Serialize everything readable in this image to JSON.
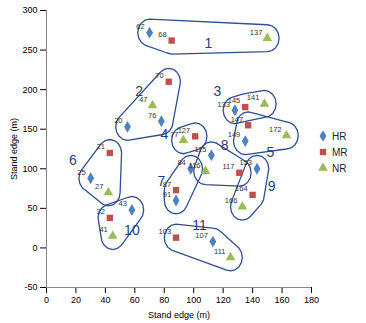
{
  "chart_data": {
    "type": "scatter",
    "xlabel": "Stand edge (m)",
    "ylabel": "Stand edge (m)",
    "xlim": [
      0,
      180
    ],
    "xticks": [
      0,
      20,
      40,
      60,
      80,
      100,
      120,
      140,
      160,
      180
    ],
    "ylim": [
      -50,
      300
    ],
    "yticks": [
      -50,
      0,
      50,
      100,
      150,
      200,
      250,
      300
    ],
    "legend": "right",
    "series": [
      {
        "name": "HR",
        "color": "#4f81bd",
        "marker": "diamond",
        "points": [
          {
            "x": 70,
            "y": 272,
            "label": "62",
            "group": "1"
          },
          {
            "x": 55,
            "y": 153,
            "label": "20",
            "group": "2"
          },
          {
            "x": 78,
            "y": 160,
            "label": "76",
            "group": "2"
          },
          {
            "x": 128,
            "y": 174,
            "label": "133",
            "group": "3"
          },
          {
            "x": 135,
            "y": 135,
            "label": "149",
            "group": "5"
          },
          {
            "x": 30,
            "y": 88,
            "label": "25",
            "group": "6"
          },
          {
            "x": 98,
            "y": 100,
            "label": "84",
            "group": "7"
          },
          {
            "x": 88,
            "y": 60,
            "label": "91",
            "group": "7"
          },
          {
            "x": 112,
            "y": 117,
            "label": "115",
            "group": "8"
          },
          {
            "x": 143,
            "y": 100,
            "label": "153",
            "group": "9"
          },
          {
            "x": 58,
            "y": 48,
            "label": "43",
            "group": "10"
          },
          {
            "x": 113,
            "y": 8,
            "label": "107",
            "group": "11"
          }
        ]
      },
      {
        "name": "MR",
        "color": "#c0504d",
        "marker": "square",
        "points": [
          {
            "x": 85,
            "y": 262,
            "label": "68",
            "group": "1"
          },
          {
            "x": 83,
            "y": 210,
            "label": "70",
            "group": "2"
          },
          {
            "x": 135,
            "y": 178,
            "label": "145",
            "group": "3"
          },
          {
            "x": 101,
            "y": 141,
            "label": "127",
            "group": "4"
          },
          {
            "x": 137,
            "y": 155,
            "label": "147",
            "group": "5"
          },
          {
            "x": 43,
            "y": 120,
            "label": "21",
            "group": "6"
          },
          {
            "x": 88,
            "y": 73,
            "label": "87",
            "group": "7"
          },
          {
            "x": 131,
            "y": 95,
            "label": "117",
            "group": "8"
          },
          {
            "x": 140,
            "y": 67,
            "label": "164",
            "group": "9"
          },
          {
            "x": 43,
            "y": 38,
            "label": "32",
            "group": "10"
          },
          {
            "x": 88,
            "y": 13,
            "label": "103",
            "group": "11"
          }
        ]
      },
      {
        "name": "NR",
        "color": "#9bbb59",
        "marker": "triangle",
        "points": [
          {
            "x": 150,
            "y": 265,
            "label": "137",
            "group": "1"
          },
          {
            "x": 72,
            "y": 180,
            "label": "47",
            "group": "2"
          },
          {
            "x": 148,
            "y": 182,
            "label": "141",
            "group": "3"
          },
          {
            "x": 93,
            "y": 136,
            "label": "77",
            "group": "4"
          },
          {
            "x": 163,
            "y": 142,
            "label": "172",
            "group": "5"
          },
          {
            "x": 42,
            "y": 70,
            "label": "27",
            "group": "6"
          },
          {
            "x": 108,
            "y": 97,
            "label": "116",
            "group": "8"
          },
          {
            "x": 133,
            "y": 52,
            "label": "166",
            "group": "9"
          },
          {
            "x": 45,
            "y": 15,
            "label": "41",
            "group": "10"
          },
          {
            "x": 125,
            "y": -12,
            "label": "111",
            "group": "11"
          }
        ]
      }
    ],
    "groups": [
      {
        "label": "1",
        "x": 110,
        "y": 258
      },
      {
        "label": "2",
        "x": 63,
        "y": 198
      },
      {
        "label": "3",
        "x": 116,
        "y": 198
      },
      {
        "label": "4",
        "x": 80,
        "y": 143
      },
      {
        "label": "5",
        "x": 152,
        "y": 120
      },
      {
        "label": "6",
        "x": 18,
        "y": 110
      },
      {
        "label": "7",
        "x": 78,
        "y": 84
      },
      {
        "label": "8",
        "x": 121,
        "y": 130
      },
      {
        "label": "9",
        "x": 153,
        "y": 78
      },
      {
        "label": "10",
        "x": 58,
        "y": 22
      },
      {
        "label": "11",
        "x": 104,
        "y": 28
      }
    ]
  }
}
